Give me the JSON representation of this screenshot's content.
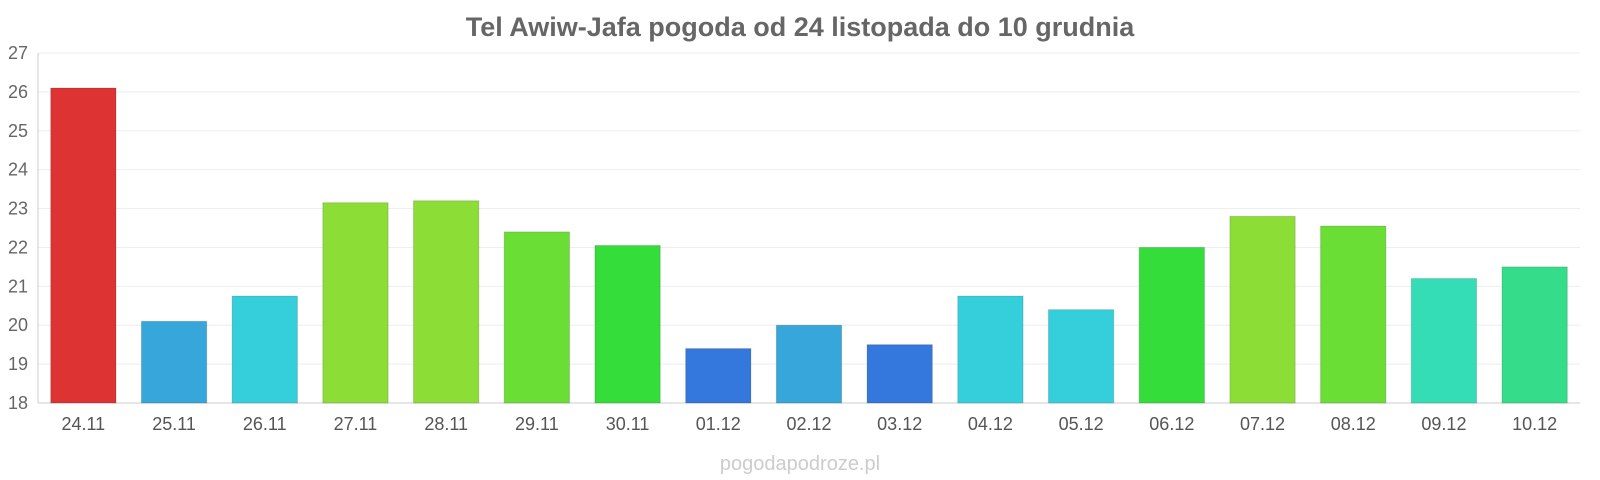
{
  "chart_data": {
    "type": "bar",
    "title": "Tel Awiw-Jafa pogoda od 24 listopada do 10 grudnia",
    "xlabel": "",
    "ylabel": "",
    "ylim": [
      18,
      27
    ],
    "yticks": [
      "18",
      "19",
      "20",
      "21",
      "22",
      "23",
      "24",
      "25",
      "26",
      "27"
    ],
    "categories": [
      "24.11",
      "25.11",
      "26.11",
      "27.11",
      "28.11",
      "29.11",
      "30.11",
      "01.12",
      "02.12",
      "03.12",
      "04.12",
      "05.12",
      "06.12",
      "07.12",
      "08.12",
      "09.12",
      "10.12"
    ],
    "values": [
      26.1,
      20.1,
      20.75,
      23.15,
      23.2,
      22.4,
      22.05,
      19.4,
      20.0,
      19.5,
      20.75,
      20.4,
      22.0,
      22.8,
      22.55,
      21.2,
      21.5
    ],
    "colors": [
      "#dd3333",
      "#36a6db",
      "#35cfdc",
      "#8cdd35",
      "#8cdd35",
      "#6ade35",
      "#35dd3a",
      "#3578dd",
      "#36a6db",
      "#3578dd",
      "#35cfdc",
      "#35cfdc",
      "#35dd3a",
      "#8cdd35",
      "#6ade35",
      "#35ddb6",
      "#35dd8a"
    ],
    "grid": true,
    "legend": "none"
  },
  "watermark": "pogodapodroze.pl"
}
